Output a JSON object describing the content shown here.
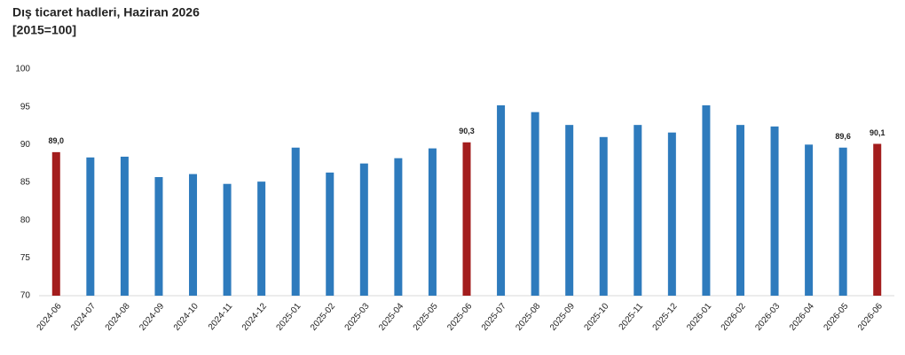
{
  "chart_data": {
    "type": "bar",
    "title": "Dış ticaret hadleri, Haziran 2026",
    "subtitle": "[2015=100]",
    "categories": [
      "2024-06",
      "2024-07",
      "2024-08",
      "2024-09",
      "2024-10",
      "2024-11",
      "2024-12",
      "2025-01",
      "2025-02",
      "2025-03",
      "2025-04",
      "2025-05",
      "2025-06",
      "2025-07",
      "2025-08",
      "2025-09",
      "2025-10",
      "2025-11",
      "2025-12",
      "2026-01",
      "2026-02",
      "2026-03",
      "2026-04",
      "2026-05",
      "2026-06"
    ],
    "values": [
      89.0,
      88.3,
      88.4,
      85.7,
      86.1,
      84.8,
      85.1,
      89.6,
      86.3,
      87.5,
      88.2,
      89.5,
      90.3,
      95.2,
      94.3,
      92.6,
      91.0,
      92.6,
      91.6,
      95.2,
      92.6,
      92.4,
      90.0,
      89.6,
      90.1
    ],
    "value_labels": [
      "89,0",
      null,
      null,
      null,
      null,
      null,
      null,
      null,
      null,
      null,
      null,
      null,
      "90,3",
      null,
      null,
      null,
      null,
      null,
      null,
      null,
      null,
      null,
      null,
      "89,6",
      "90,1"
    ],
    "colors": [
      "#a31d1d",
      "#2e7bbd",
      "#2e7bbd",
      "#2e7bbd",
      "#2e7bbd",
      "#2e7bbd",
      "#2e7bbd",
      "#2e7bbd",
      "#2e7bbd",
      "#2e7bbd",
      "#2e7bbd",
      "#2e7bbd",
      "#a31d1d",
      "#2e7bbd",
      "#2e7bbd",
      "#2e7bbd",
      "#2e7bbd",
      "#2e7bbd",
      "#2e7bbd",
      "#2e7bbd",
      "#2e7bbd",
      "#2e7bbd",
      "#2e7bbd",
      "#2e7bbd",
      "#a31d1d"
    ],
    "ylim": [
      70,
      100
    ],
    "yticks": [
      70,
      75,
      80,
      85,
      90,
      95,
      100
    ],
    "grid": false
  }
}
